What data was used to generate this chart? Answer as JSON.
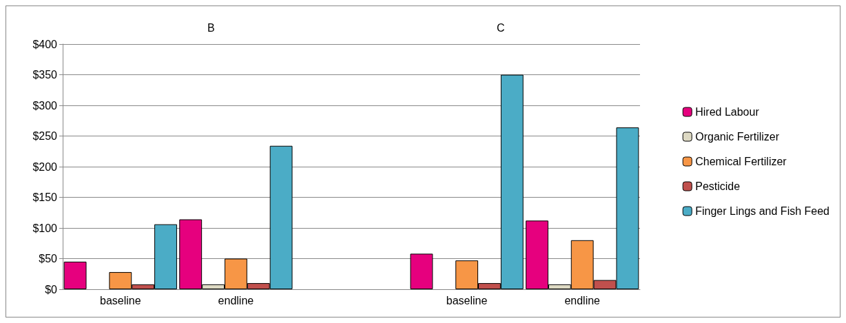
{
  "chart_data": {
    "type": "bar",
    "categories": [
      "baseline",
      "endline",
      null,
      "baseline",
      "endline"
    ],
    "series": [
      {
        "name": "Hired Labour",
        "color": "#e6007e",
        "values": [
          45,
          114,
          null,
          58,
          112
        ]
      },
      {
        "name": "Organic Fertilizer",
        "color": "#ddd9c3",
        "values": [
          null,
          8,
          null,
          null,
          8
        ]
      },
      {
        "name": "Chemical Fertilizer",
        "color": "#f79646",
        "values": [
          28,
          50,
          null,
          47,
          80
        ]
      },
      {
        "name": "Pesticide",
        "color": "#c0504d",
        "values": [
          8,
          10,
          null,
          10,
          15
        ]
      },
      {
        "name": "Finger Lings and Fish Feed",
        "color": "#4bacc6",
        "values": [
          106,
          234,
          null,
          350,
          264
        ]
      }
    ],
    "annotations": [
      "B",
      "C"
    ],
    "ylim": [
      0,
      400
    ],
    "yticks": [
      {
        "value": 0,
        "label": "$0"
      },
      {
        "value": 50,
        "label": "$50"
      },
      {
        "value": 100,
        "label": "$100"
      },
      {
        "value": 150,
        "label": "$150"
      },
      {
        "value": 200,
        "label": "$200"
      },
      {
        "value": 250,
        "label": "$250"
      },
      {
        "value": 300,
        "label": "$300"
      },
      {
        "value": 350,
        "label": "$350"
      },
      {
        "value": 400,
        "label": "$400"
      }
    ],
    "grid": "y",
    "legend": "right"
  }
}
